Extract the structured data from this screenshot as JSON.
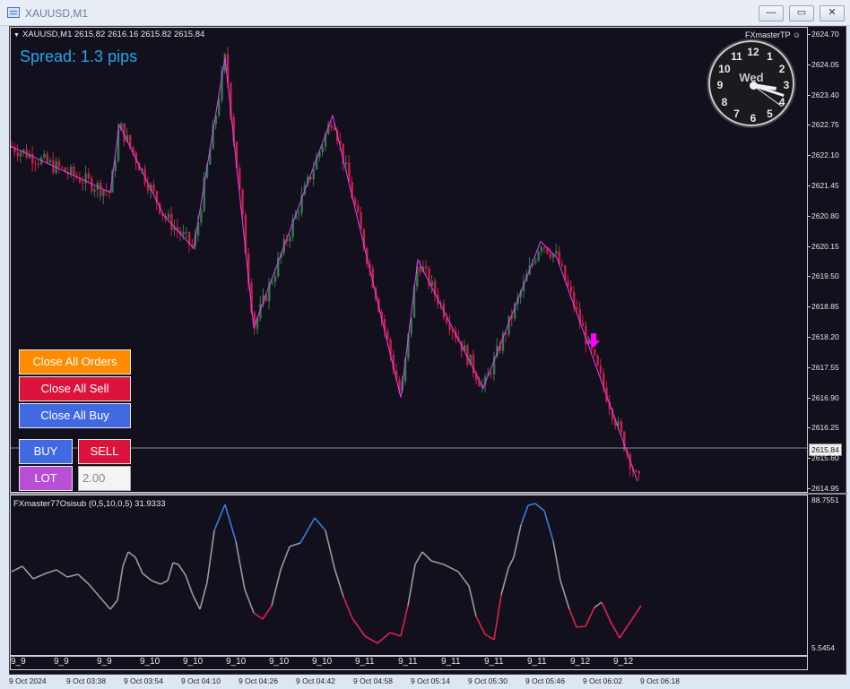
{
  "window": {
    "title": "XAUUSD,M1",
    "minimize_label": "—",
    "restore_label": "▭",
    "close_label": "✕"
  },
  "chart": {
    "symbol_info": "XAUUSD,M1  2615.82 2616.16 2615.82 2615.84",
    "spread_text": "Spread: 1.3 pips",
    "fxmaster_label": "FXmasterTP",
    "current_price": "2615.84",
    "oscillator_label": "FXmaster77Osisub (0,5,10,0,5) 31.9333",
    "colors": {
      "background": "#13101e",
      "bull_candle": "#2e7d4a",
      "bear_candle": "#c8203f",
      "zigzag": "#e040fb",
      "osc_neutral": "#9a9a9a",
      "osc_high": "#3a7be0",
      "osc_low": "#e0204a",
      "sell_arrow": "#ff00ff"
    }
  },
  "price_scale": [
    "2624.70",
    "2624.05",
    "2623.40",
    "2622.75",
    "2622.10",
    "2621.45",
    "2620.80",
    "2620.15",
    "2619.50",
    "2618.85",
    "2618.20",
    "2617.55",
    "2616.90",
    "2616.25",
    "2615.60",
    "2614.95"
  ],
  "osc_scale": {
    "top": "88.7551",
    "bottom": "5.5454"
  },
  "time_labels": [
    "9_9",
    "9_9",
    "9_9",
    "9_10",
    "9_10",
    "9_10",
    "9_10",
    "9_10",
    "9_11",
    "9_11",
    "9_11",
    "9_11",
    "9_11",
    "9_12",
    "9_12"
  ],
  "date_labels": [
    "9 Oct 2024",
    "9 Oct 03:38",
    "9 Oct 03:54",
    "9 Oct 04:10",
    "9 Oct 04:26",
    "9 Oct 04:42",
    "9 Oct 04:58",
    "9 Oct 05:14",
    "9 Oct 05:30",
    "9 Oct 05:46",
    "9 Oct 06:02",
    "9 Oct 06:18"
  ],
  "buttons": {
    "close_all_orders": "Close All Orders",
    "close_all_sell": "Close All Sell",
    "close_all_buy": "Close All Buy",
    "buy": "BUY",
    "sell": "SELL",
    "lot": "LOT"
  },
  "lot_input": {
    "value": "2.00"
  },
  "clock": {
    "day": "Wed",
    "numbers": [
      "12",
      "1",
      "2",
      "3",
      "4",
      "5",
      "6",
      "7",
      "8",
      "9",
      "10",
      "11"
    ],
    "hour": 3,
    "minute": 18,
    "second": 21
  }
}
